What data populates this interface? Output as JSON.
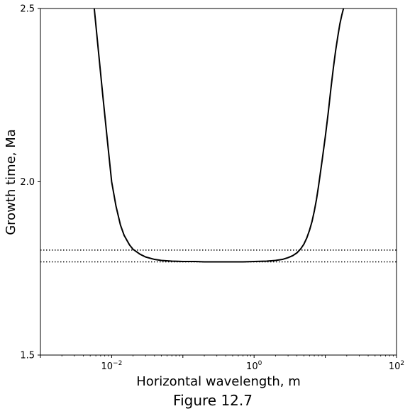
{
  "figure": {
    "caption": "Figure 12.7"
  },
  "chart_data": {
    "type": "line",
    "title": "",
    "xlabel": "Horizontal wavelength, m",
    "ylabel": "Growth time, Ma",
    "xscale": "log",
    "xlim": [
      0.001,
      100
    ],
    "ylim": [
      1.5,
      2.5
    ],
    "grid": false,
    "xticks": [
      {
        "value": 0.01,
        "base": "10",
        "exp": "−2"
      },
      {
        "value": 1,
        "base": "10",
        "exp": "0"
      },
      {
        "value": 100,
        "base": "10",
        "exp": "2"
      }
    ],
    "yticks": [
      {
        "value": 1.5,
        "label": "1.5"
      },
      {
        "value": 2.0,
        "label": "2.0"
      },
      {
        "value": 2.5,
        "label": "2.5"
      }
    ],
    "series": [
      {
        "style": "solid",
        "color": "#000000",
        "x": [
          0.0057,
          0.0065,
          0.0075,
          0.0087,
          0.01,
          0.0115,
          0.0133,
          0.015,
          0.0178,
          0.02,
          0.025,
          0.03,
          0.04,
          0.05,
          0.07,
          0.1,
          0.15,
          0.2,
          0.3,
          0.5,
          0.7,
          1,
          1.5,
          2,
          2.5,
          3,
          3.5,
          4,
          4.5,
          5,
          5.5,
          6,
          6.5,
          7,
          7.5,
          8,
          9,
          10,
          11,
          12,
          13,
          14,
          15,
          16,
          17,
          18
        ],
        "y": [
          2.5,
          2.38,
          2.25,
          2.12,
          2.0,
          1.93,
          1.875,
          1.845,
          1.818,
          1.805,
          1.791,
          1.783,
          1.776,
          1.773,
          1.771,
          1.77,
          1.77,
          1.769,
          1.769,
          1.769,
          1.769,
          1.77,
          1.771,
          1.773,
          1.776,
          1.781,
          1.787,
          1.795,
          1.806,
          1.82,
          1.838,
          1.86,
          1.885,
          1.915,
          1.948,
          1.985,
          2.06,
          2.13,
          2.2,
          2.27,
          2.33,
          2.38,
          2.42,
          2.455,
          2.48,
          2.5
        ]
      }
    ],
    "reference_lines": [
      {
        "orientation": "horizontal",
        "y": 1.803,
        "style": "dotted"
      },
      {
        "orientation": "horizontal",
        "y": 1.769,
        "style": "dotted"
      }
    ]
  }
}
